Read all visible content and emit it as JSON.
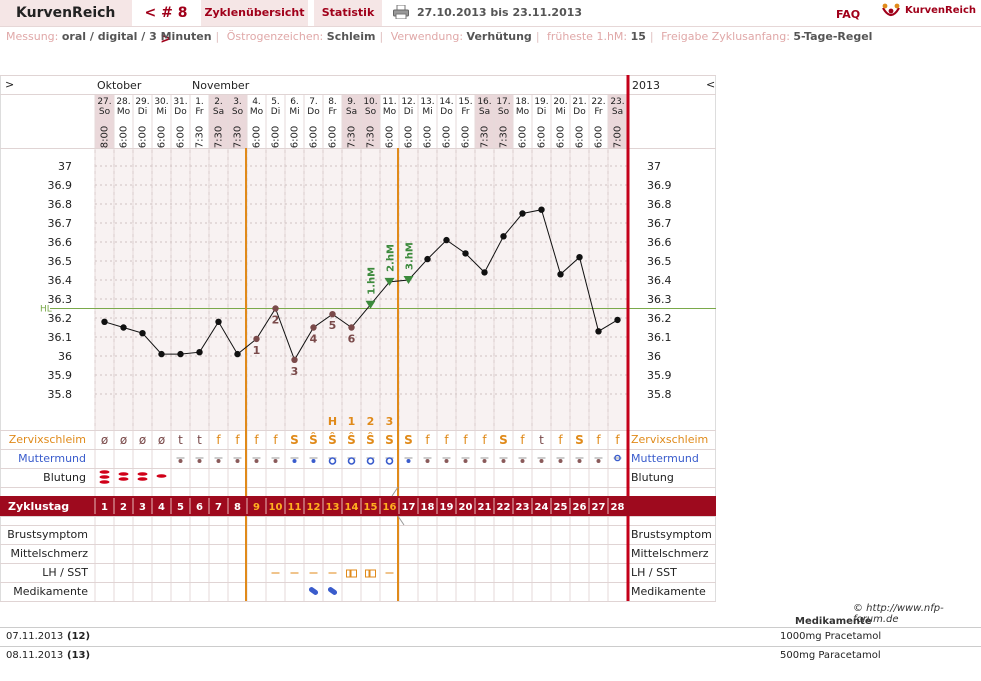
{
  "header": {
    "brand": "KurvenReich",
    "cycle_nav": "< # 8 >",
    "tab_overview": "Zyklenübersicht",
    "tab_stats": "Statistik",
    "date_range": "27.10.2013 bis 23.11.2013",
    "faq": "FAQ",
    "logo_text": "KurvenReich"
  },
  "info": {
    "measurement_label": "Messung:",
    "measurement_value": "oral / digital / 3 Minuten",
    "estrogen_label": "Östrogenzeichen:",
    "estrogen_value": "Schleim",
    "usage_label": "Verwendung:",
    "usage_value": "Verhütung",
    "earliest_label": "früheste 1.hM:",
    "earliest_value": "15",
    "release_label": "Freigabe Zyklusanfang:",
    "release_value": "5-Tage-Regel"
  },
  "colors": {
    "accent": "#a0001a",
    "orange": "#e08a1a",
    "blue": "#3a5ccc",
    "green": "#3c8a3c",
    "grid_bg": "#f8f2f2",
    "weekend_bg": "#ead8da"
  },
  "chart_data": {
    "type": "line",
    "left_nav": ">",
    "right_nav": "<",
    "year": "2013",
    "month_labels": [
      {
        "day_index": 0,
        "text": "Oktober"
      },
      {
        "day_index": 5,
        "text": "November"
      }
    ],
    "days": [
      {
        "date": "27.",
        "wd": "So",
        "time": "8:00",
        "weekend": true
      },
      {
        "date": "28.",
        "wd": "Mo",
        "time": "6:00",
        "weekend": false
      },
      {
        "date": "29.",
        "wd": "Di",
        "time": "6:00",
        "weekend": false
      },
      {
        "date": "30.",
        "wd": "Mi",
        "time": "6:00",
        "weekend": false
      },
      {
        "date": "31.",
        "wd": "Do",
        "time": "6:00",
        "weekend": false
      },
      {
        "date": "1.",
        "wd": "Fr",
        "time": "7:30",
        "weekend": false
      },
      {
        "date": "2.",
        "wd": "Sa",
        "time": "7:30",
        "weekend": true
      },
      {
        "date": "3.",
        "wd": "So",
        "time": "7:30",
        "weekend": true
      },
      {
        "date": "4.",
        "wd": "Mo",
        "time": "6:00",
        "weekend": false
      },
      {
        "date": "5.",
        "wd": "Di",
        "time": "6:00",
        "weekend": false
      },
      {
        "date": "6.",
        "wd": "Mi",
        "time": "6:00",
        "weekend": false
      },
      {
        "date": "7.",
        "wd": "Do",
        "time": "6:00",
        "weekend": false
      },
      {
        "date": "8.",
        "wd": "Fr",
        "time": "6:00",
        "weekend": false
      },
      {
        "date": "9.",
        "wd": "Sa",
        "time": "7:30",
        "weekend": true
      },
      {
        "date": "10.",
        "wd": "So",
        "time": "7:30",
        "weekend": true
      },
      {
        "date": "11.",
        "wd": "Mo",
        "time": "6:00",
        "weekend": false
      },
      {
        "date": "12.",
        "wd": "Di",
        "time": "6:00",
        "weekend": false
      },
      {
        "date": "13.",
        "wd": "Mi",
        "time": "6:00",
        "weekend": false
      },
      {
        "date": "14.",
        "wd": "Do",
        "time": "6:00",
        "weekend": false
      },
      {
        "date": "15.",
        "wd": "Fr",
        "time": "6:00",
        "weekend": false
      },
      {
        "date": "16.",
        "wd": "Sa",
        "time": "7:30",
        "weekend": true
      },
      {
        "date": "17.",
        "wd": "So",
        "time": "7:30",
        "weekend": true
      },
      {
        "date": "18.",
        "wd": "Mo",
        "time": "6:00",
        "weekend": false
      },
      {
        "date": "19.",
        "wd": "Di",
        "time": "6:00",
        "weekend": false
      },
      {
        "date": "20.",
        "wd": "Mi",
        "time": "6:00",
        "weekend": false
      },
      {
        "date": "21.",
        "wd": "Do",
        "time": "6:00",
        "weekend": false
      },
      {
        "date": "22.",
        "wd": "Fr",
        "time": "6:00",
        "weekend": false
      },
      {
        "date": "23.",
        "wd": "Sa",
        "time": "7:00",
        "weekend": true
      }
    ],
    "y_ticks": [
      "37",
      "36.9",
      "36.8",
      "36.7",
      "36.6",
      "36.5",
      "36.4",
      "36.3",
      "36.2",
      "36.1",
      "36",
      "35.9",
      "35.8"
    ],
    "ylim": [
      35.8,
      37.0
    ],
    "hl_label": "HL",
    "hl_value": 36.25,
    "temperatures": [
      36.18,
      36.15,
      36.12,
      36.01,
      36.01,
      36.02,
      36.18,
      36.01,
      36.09,
      36.25,
      35.98,
      36.15,
      36.22,
      36.15,
      36.27,
      36.39,
      36.4,
      36.51,
      36.61,
      36.54,
      36.44,
      36.63,
      36.75,
      36.77,
      36.43,
      36.52,
      36.13,
      36.19
    ],
    "low_labels": [
      {
        "day_index": 8,
        "text": "1",
        "pos": "below"
      },
      {
        "day_index": 9,
        "text": "2",
        "pos": "below"
      },
      {
        "day_index": 10,
        "text": "3",
        "pos": "below"
      },
      {
        "day_index": 11,
        "text": "4",
        "pos": "below"
      },
      {
        "day_index": 12,
        "text": "5",
        "pos": "below"
      },
      {
        "day_index": 13,
        "text": "6",
        "pos": "below"
      }
    ],
    "high_labels": [
      {
        "day_index": 14,
        "text": "1.hM"
      },
      {
        "day_index": 15,
        "text": "2.hM"
      },
      {
        "day_index": 16,
        "text": "3.hM"
      }
    ],
    "peak_markers": [
      {
        "day_index": 12,
        "text": "H"
      },
      {
        "day_index": 13,
        "text": "1"
      },
      {
        "day_index": 14,
        "text": "2"
      },
      {
        "day_index": 15,
        "text": "3"
      }
    ],
    "rows": {
      "mucus_label": "Zervixschleim",
      "cervix_label": "Muttermund",
      "bleeding_label": "Blutung",
      "cycle_day_label": "Zyklustag",
      "breast_label": "Brustsymptom",
      "midpain_label": "Mittelschmerz",
      "lh_label": "LH / SST",
      "meds_label": "Medikamente"
    },
    "mucus": [
      "ø",
      "ø",
      "ø",
      "ø",
      "t",
      "t",
      "f",
      "f",
      "f",
      "f",
      "S",
      "Ŝ",
      "Ŝ",
      "Ŝ",
      "Ŝ",
      "S",
      "S",
      "f",
      "f",
      "f",
      "f",
      "S",
      "f",
      "t",
      "f",
      "S",
      "f",
      "f"
    ],
    "cycle_days": [
      "1",
      "2",
      "3",
      "4",
      "5",
      "6",
      "7",
      "8",
      "9",
      "10",
      "11",
      "12",
      "13",
      "14",
      "15",
      "16",
      "17",
      "18",
      "19",
      "20",
      "21",
      "22",
      "23",
      "24",
      "25",
      "26",
      "27",
      "28"
    ]
  },
  "footer": {
    "copyright": "© http://www.nfp-forum.de",
    "meds_header": "Medikamente",
    "rows": [
      {
        "date": "07.11.2013",
        "day": "(12)",
        "med": "1000mg Pracetamol"
      },
      {
        "date": "08.11.2013",
        "day": "(13)",
        "med": "500mg Paracetamol"
      }
    ]
  }
}
